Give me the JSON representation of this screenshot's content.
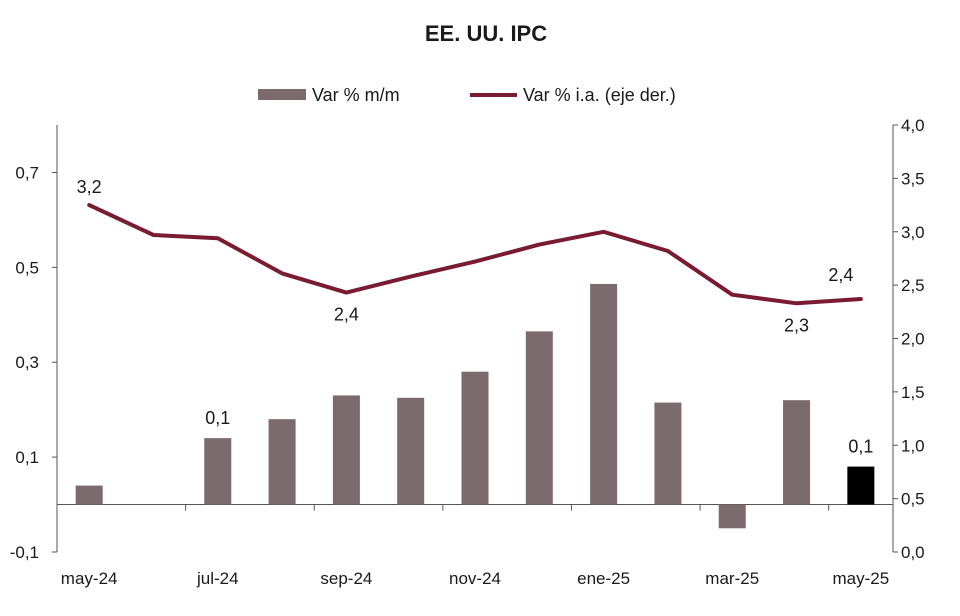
{
  "chart_data": {
    "type": "bar",
    "title": "EE. UU. IPC",
    "legend": {
      "placement": "top-center",
      "bar_label": "Var % m/m",
      "line_label": "Var %  i.a. (eje der.)"
    },
    "x_tick_labels": [
      "may-24",
      "jul-24",
      "sep-24",
      "nov-24",
      "ene-25",
      "mar-25",
      "may-25"
    ],
    "categories": [
      "may-24",
      "jun-24",
      "jul-24",
      "ago-24",
      "sep-24",
      "oct-24",
      "nov-24",
      "dic-24",
      "ene-25",
      "feb-25",
      "mar-25",
      "abr-25",
      "may-25"
    ],
    "series": [
      {
        "name": "Var % m/m",
        "type": "bar",
        "axis": "left",
        "values": [
          0.04,
          0.0,
          0.14,
          0.18,
          0.23,
          0.225,
          0.28,
          0.365,
          0.465,
          0.215,
          -0.05,
          0.22,
          0.08
        ],
        "highlight_last": true
      },
      {
        "name": "Var %  i.a. (eje der.)",
        "type": "line",
        "axis": "right",
        "values": [
          3.25,
          2.97,
          2.94,
          2.61,
          2.43,
          2.58,
          2.72,
          2.88,
          3.0,
          2.82,
          2.41,
          2.33,
          2.37
        ]
      }
    ],
    "data_labels": [
      {
        "series": "Var % m/m",
        "index": 2,
        "text": "0,1"
      },
      {
        "series": "Var % m/m",
        "index": 12,
        "text": "0,1"
      },
      {
        "series": "Var %  i.a. (eje der.)",
        "index": 0,
        "text": "3,2"
      },
      {
        "series": "Var %  i.a. (eje der.)",
        "index": 4,
        "text": "2,4"
      },
      {
        "series": "Var %  i.a. (eje der.)",
        "index": 11,
        "text": "2,3"
      },
      {
        "series": "Var %  i.a. (eje der.)",
        "index": 12,
        "text": "2,4"
      }
    ],
    "y_left": {
      "min": -0.1,
      "max": 0.8,
      "ticks": [
        -0.1,
        0.1,
        0.3,
        0.5,
        0.7
      ],
      "tick_labels": [
        "-0,1",
        "0,1",
        "0,3",
        "0,5",
        "0,7"
      ]
    },
    "y_right": {
      "min": 0.0,
      "max": 4.0,
      "ticks": [
        0.0,
        0.5,
        1.0,
        1.5,
        2.0,
        2.5,
        3.0,
        3.5,
        4.0
      ],
      "tick_labels": [
        "0,0",
        "0,5",
        "1,0",
        "1,5",
        "2,0",
        "2,5",
        "3,0",
        "3,5",
        "4,0"
      ]
    },
    "grid": false,
    "colors": {
      "bar": "#7b6a6e",
      "bar_highlight": "#000000",
      "line": "#7a1a33",
      "axis": "#555555"
    }
  }
}
